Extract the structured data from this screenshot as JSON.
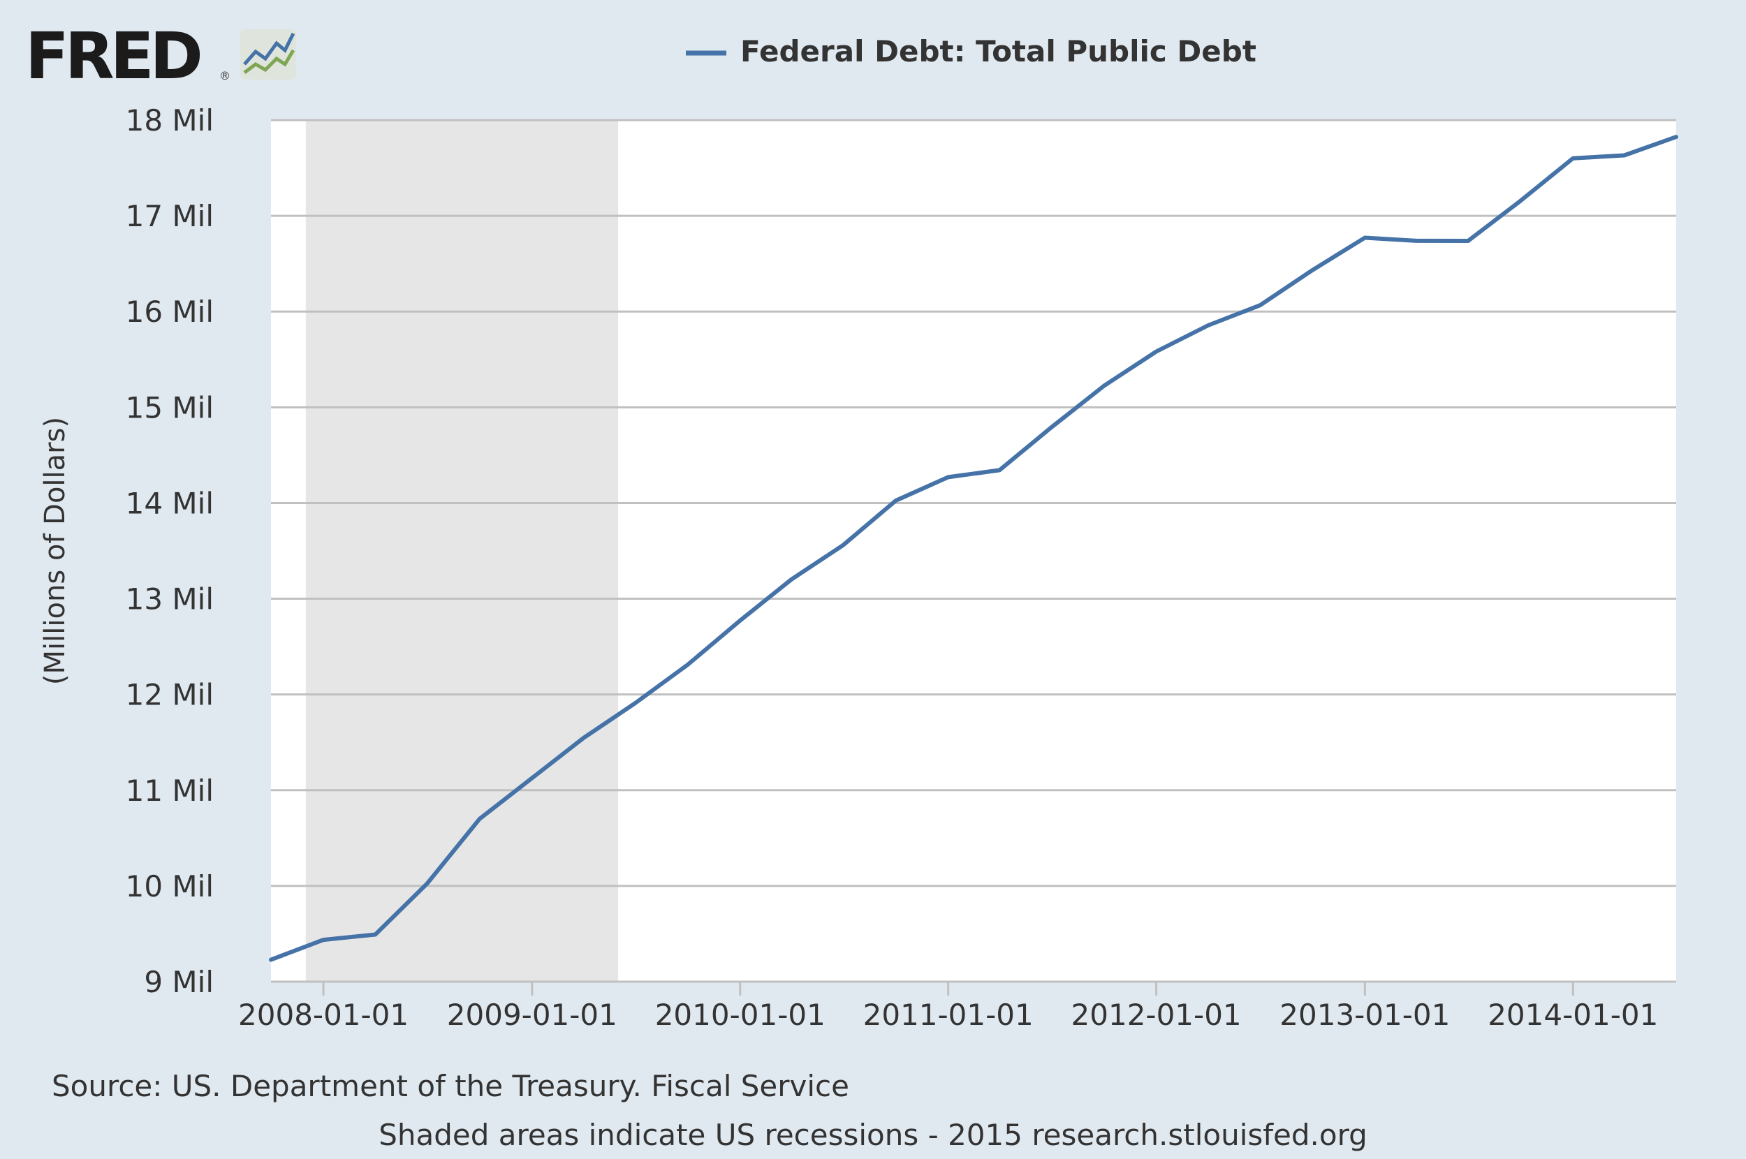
{
  "logo": {
    "text": "FRED",
    "reg_mark": "®",
    "icon": "fred-chart-icon"
  },
  "footer": {
    "source": "Source: US. Department of the Treasury. Fiscal Service",
    "note": "Shaded areas indicate US recessions - 2015 research.stlouisfed.org"
  },
  "colors": {
    "background": "#e1e9f0",
    "plot_background": "#ffffff",
    "line": "#4572a7",
    "recession_shade": "#e6e6e6",
    "grid": "#c0c0c0",
    "text": "#333333"
  },
  "chart_data": {
    "type": "line",
    "title": "",
    "xlabel": "",
    "ylabel": "(Millions of Dollars)",
    "ylim": [
      9000000,
      18000000
    ],
    "xlim": [
      "2007-10-01",
      "2014-07-01"
    ],
    "grid": true,
    "legend_position": "top-center",
    "x_ticks": [
      "2008-01-01",
      "2009-01-01",
      "2010-01-01",
      "2011-01-01",
      "2012-01-01",
      "2013-01-01",
      "2014-01-01"
    ],
    "y_ticks": [
      {
        "value": 9000000,
        "label": "9 Mil"
      },
      {
        "value": 10000000,
        "label": "10 Mil"
      },
      {
        "value": 11000000,
        "label": "11 Mil"
      },
      {
        "value": 12000000,
        "label": "12 Mil"
      },
      {
        "value": 13000000,
        "label": "13 Mil"
      },
      {
        "value": 14000000,
        "label": "14 Mil"
      },
      {
        "value": 15000000,
        "label": "15 Mil"
      },
      {
        "value": 16000000,
        "label": "16 Mil"
      },
      {
        "value": 17000000,
        "label": "17 Mil"
      },
      {
        "value": 18000000,
        "label": "18 Mil"
      }
    ],
    "shaded_periods": [
      {
        "start": "2007-12-01",
        "end": "2009-06-01"
      }
    ],
    "series": [
      {
        "name": "Federal Debt: Total Public Debt",
        "points": [
          {
            "x": "2007-10-01",
            "y": 9229000
          },
          {
            "x": "2008-01-01",
            "y": 9437000
          },
          {
            "x": "2008-04-01",
            "y": 9492000
          },
          {
            "x": "2008-07-01",
            "y": 10025000
          },
          {
            "x": "2008-10-01",
            "y": 10700000
          },
          {
            "x": "2009-01-01",
            "y": 11127000
          },
          {
            "x": "2009-04-01",
            "y": 11545000
          },
          {
            "x": "2009-07-01",
            "y": 11910000
          },
          {
            "x": "2009-10-01",
            "y": 12311000
          },
          {
            "x": "2010-01-01",
            "y": 12773000
          },
          {
            "x": "2010-04-01",
            "y": 13202000
          },
          {
            "x": "2010-07-01",
            "y": 13561000
          },
          {
            "x": "2010-10-01",
            "y": 14025000
          },
          {
            "x": "2011-01-01",
            "y": 14270000
          },
          {
            "x": "2011-04-01",
            "y": 14343000
          },
          {
            "x": "2011-07-01",
            "y": 14790000
          },
          {
            "x": "2011-10-01",
            "y": 15223000
          },
          {
            "x": "2012-01-01",
            "y": 15582000
          },
          {
            "x": "2012-04-01",
            "y": 15856000
          },
          {
            "x": "2012-07-01",
            "y": 16066000
          },
          {
            "x": "2012-10-01",
            "y": 16433000
          },
          {
            "x": "2013-01-01",
            "y": 16771000
          },
          {
            "x": "2013-04-01",
            "y": 16739000
          },
          {
            "x": "2013-07-01",
            "y": 16738000
          },
          {
            "x": "2013-10-01",
            "y": 17157000
          },
          {
            "x": "2014-01-01",
            "y": 17601000
          },
          {
            "x": "2014-04-01",
            "y": 17632000
          },
          {
            "x": "2014-07-01",
            "y": 17824000
          }
        ]
      }
    ]
  }
}
